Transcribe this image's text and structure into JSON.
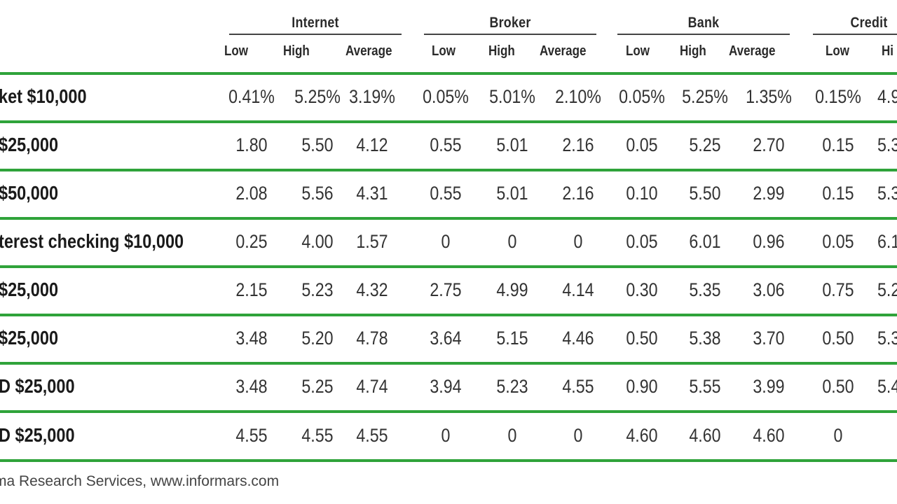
{
  "groups": [
    {
      "name": "Internet"
    },
    {
      "name": "Broker"
    },
    {
      "name": "Bank"
    },
    {
      "name": "Credit"
    }
  ],
  "subheaders": [
    "Low",
    "High",
    "Average",
    "Low",
    "High",
    "Average",
    "Low",
    "High",
    "Average",
    "Low",
    "Hi"
  ],
  "rows": [
    {
      "label": "ket $10,000",
      "values": [
        "0.41%",
        "5.25%",
        "3.19%",
        "0.05%",
        "5.01%",
        "2.10%",
        "0.05%",
        "5.25%",
        "1.35%",
        "0.15%",
        "4.9"
      ]
    },
    {
      "label": "$25,000",
      "values": [
        "1.80",
        "5.50",
        "4.12",
        "0.55",
        "5.01",
        "2.16",
        "0.05",
        "5.25",
        "2.70",
        "0.15",
        "5.3"
      ]
    },
    {
      "label": "$50,000",
      "values": [
        "2.08",
        "5.56",
        "4.31",
        "0.55",
        "5.01",
        "2.16",
        "0.10",
        "5.50",
        "2.99",
        "0.15",
        "5.3"
      ]
    },
    {
      "label": "terest checking $10,000",
      "values": [
        "0.25",
        "4.00",
        "1.57",
        "0",
        "0",
        "0",
        "0.05",
        "6.01",
        "0.96",
        "0.05",
        "6.1"
      ]
    },
    {
      "label": "$25,000",
      "values": [
        "2.15",
        "5.23",
        "4.32",
        "2.75",
        "4.99",
        "4.14",
        "0.30",
        "5.35",
        "3.06",
        "0.75",
        "5.2"
      ]
    },
    {
      "label": "$25,000",
      "values": [
        "3.48",
        "5.20",
        "4.78",
        "3.64",
        "5.15",
        "4.46",
        "0.50",
        "5.38",
        "3.70",
        "0.50",
        "5.3"
      ]
    },
    {
      "label": "D $25,000",
      "values": [
        "3.48",
        "5.25",
        "4.74",
        "3.94",
        "5.23",
        "4.55",
        "0.90",
        "5.55",
        "3.99",
        "0.50",
        "5.4"
      ]
    },
    {
      "label": "D $25,000",
      "values": [
        "4.55",
        "4.55",
        "4.55",
        "0",
        "0",
        "0",
        "4.60",
        "4.60",
        "4.60",
        "0",
        ""
      ]
    }
  ],
  "source": "ma Research Services, www.informars.com",
  "colors": {
    "rule": "#2fa33a",
    "header_rule": "#444444"
  }
}
